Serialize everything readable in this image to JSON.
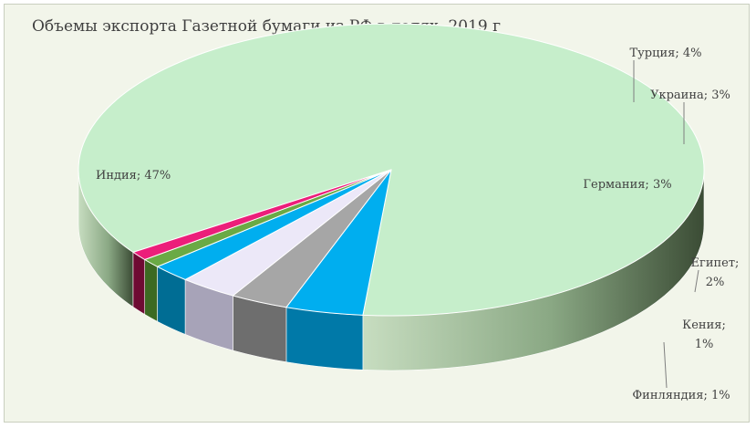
{
  "chart_data": {
    "type": "pie",
    "title": "Объемы экспорта Газетной бумаги из РФ в долях, 2019 г",
    "slices": [
      {
        "label": "Индия",
        "value": 47,
        "color": "#c6eecb",
        "side_color": "#8fb48f",
        "text": "Индия; 47%"
      },
      {
        "label": "Турция",
        "value": 4,
        "color": "#00aeef",
        "side_color": "#0079a8",
        "text": "Турция; 4%"
      },
      {
        "label": "Украина",
        "value": 3,
        "color": "#a6a6a6",
        "side_color": "#6e6e6e",
        "text": "Украина; 3%"
      },
      {
        "label": "Германия",
        "value": 3,
        "color": "#ece8f8",
        "side_color": "#a7a3b8",
        "text": "Германия; 3%"
      },
      {
        "label": "Египет",
        "value": 2,
        "color": "#00aeef",
        "side_color": "#006d94",
        "text_lines": [
          "Египет;",
          "2%"
        ]
      },
      {
        "label": "Кения",
        "value": 1,
        "color": "#6aaa45",
        "side_color": "#3c6a22",
        "text_lines": [
          "Кения;",
          "1%"
        ]
      },
      {
        "label": "Финляндия",
        "value": 1,
        "color": "#ec1e7a",
        "side_color": "#6e0b33",
        "text": "Финляндия; 1%"
      }
    ]
  }
}
